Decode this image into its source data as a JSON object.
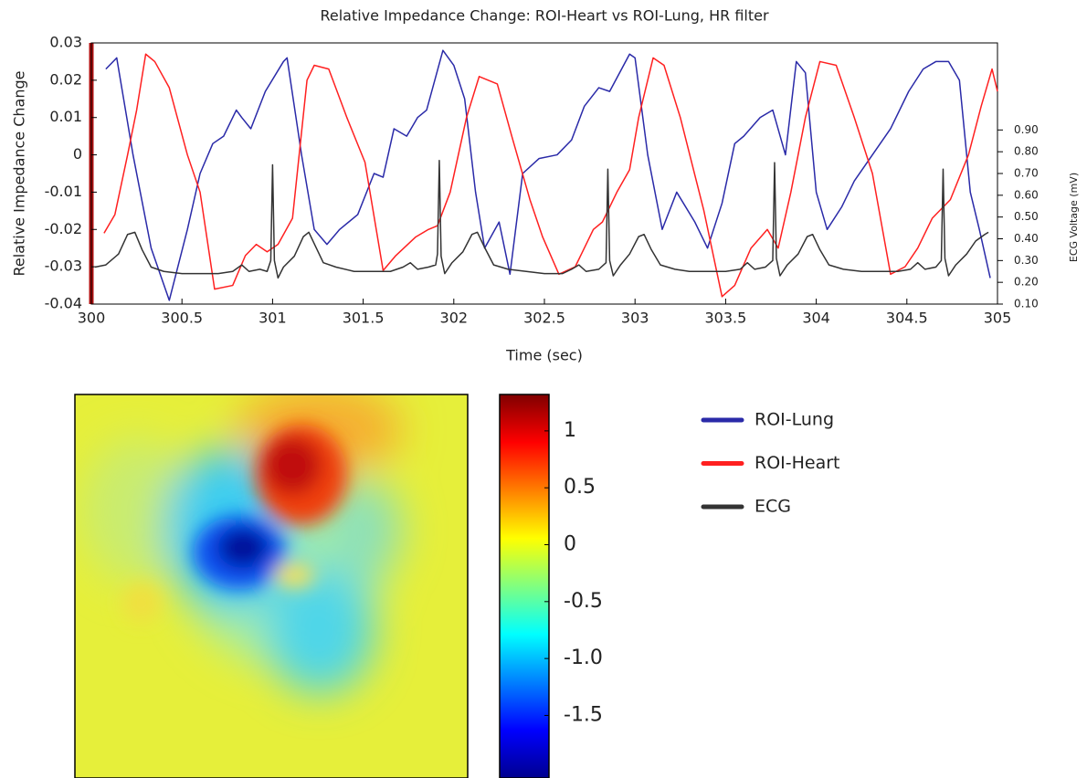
{
  "chart_data": [
    {
      "type": "line",
      "title": "Relative Impedance Change: ROI-Heart vs ROI-Lung, HR filter",
      "x_label": "Time (sec)",
      "y_label": "Relative Impedance Change",
      "y2_label": "ECG Voltage (mV)",
      "xlim": [
        300,
        305
      ],
      "xticks": [
        300,
        300.5,
        301,
        301.5,
        302,
        302.5,
        303,
        303.5,
        304,
        304.5,
        305
      ],
      "ylim": [
        -0.04,
        0.03
      ],
      "yticks": [
        -0.04,
        -0.03,
        -0.02,
        -0.01,
        0,
        0.01,
        0.02,
        0.03
      ],
      "y2lim": [
        0.1,
        1.3
      ],
      "y2ticks": [
        {
          "value": 0.1,
          "label": "0.10"
        },
        {
          "value": 0.2,
          "label": "0.20"
        },
        {
          "value": 0.3,
          "label": "0.30"
        },
        {
          "value": 0.4,
          "label": "0.40"
        },
        {
          "value": 0.5,
          "label": "0.50"
        },
        {
          "value": 0.6,
          "label": "0.60"
        },
        {
          "value": 0.7,
          "label": "0.70"
        },
        {
          "value": 0.8,
          "label": "0.80"
        },
        {
          "value": 0.9,
          "label": "0.90"
        }
      ],
      "series": [
        {
          "name": "ROI-Lung",
          "color": "#2a2aa8",
          "x": [
            300.08,
            300.14,
            300.23,
            300.33,
            300.43,
            300.53,
            300.6,
            300.67,
            300.73,
            300.8,
            300.83,
            300.88,
            300.96,
            301.06,
            301.08,
            301.16,
            301.23,
            301.3,
            301.37,
            301.47,
            301.56,
            301.61,
            301.67,
            301.74,
            301.8,
            301.85,
            301.94,
            302.0,
            302.06,
            302.12,
            302.17,
            302.25,
            302.31,
            302.38,
            302.47,
            302.57,
            302.65,
            302.72,
            302.8,
            302.86,
            302.97,
            303.0,
            303.07,
            303.15,
            303.23,
            303.33,
            303.4,
            303.48,
            303.55,
            303.6,
            303.69,
            303.76,
            303.83,
            303.89,
            303.94,
            304.0,
            304.06,
            304.14,
            304.21,
            304.31,
            304.41,
            304.51,
            304.59,
            304.66,
            304.73,
            304.79,
            304.85,
            304.9,
            304.96
          ],
          "values": [
            0.023,
            0.026,
            0.0,
            -0.025,
            -0.039,
            -0.02,
            -0.005,
            0.003,
            0.005,
            0.012,
            0.01,
            0.007,
            0.017,
            0.025,
            0.026,
            0.0,
            -0.02,
            -0.024,
            -0.02,
            -0.016,
            -0.005,
            -0.006,
            0.007,
            0.005,
            0.01,
            0.012,
            0.028,
            0.024,
            0.015,
            -0.01,
            -0.025,
            -0.018,
            -0.032,
            -0.005,
            -0.001,
            0.0,
            0.004,
            0.013,
            0.018,
            0.017,
            0.027,
            0.026,
            0.0,
            -0.02,
            -0.01,
            -0.018,
            -0.025,
            -0.013,
            0.003,
            0.005,
            0.01,
            0.012,
            0.0,
            0.025,
            0.022,
            -0.01,
            -0.02,
            -0.014,
            -0.007,
            0.0,
            0.007,
            0.017,
            0.023,
            0.025,
            0.025,
            0.02,
            -0.01,
            -0.02,
            -0.033
          ]
        },
        {
          "name": "ROI-Heart",
          "color": "#ff2020",
          "x": [
            300.07,
            300.13,
            300.2,
            300.25,
            300.3,
            300.35,
            300.43,
            300.53,
            300.6,
            300.68,
            300.78,
            300.85,
            300.91,
            300.97,
            301.03,
            301.11,
            301.19,
            301.23,
            301.31,
            301.41,
            301.51,
            301.61,
            301.68,
            301.79,
            301.86,
            301.91,
            301.98,
            302.07,
            302.14,
            302.24,
            302.32,
            302.42,
            302.49,
            302.58,
            302.67,
            302.77,
            302.82,
            302.9,
            302.97,
            303.02,
            303.1,
            303.16,
            303.25,
            303.38,
            303.48,
            303.55,
            303.64,
            303.73,
            303.79,
            303.86,
            303.94,
            304.02,
            304.11,
            304.21,
            304.31,
            304.41,
            304.49,
            304.56,
            304.64,
            304.74,
            304.84,
            304.91,
            304.97,
            305.0
          ],
          "values": [
            -0.021,
            -0.016,
            0.0,
            0.012,
            0.027,
            0.025,
            0.018,
            0.0,
            -0.01,
            -0.036,
            -0.035,
            -0.027,
            -0.024,
            -0.026,
            -0.024,
            -0.017,
            0.02,
            0.024,
            0.023,
            0.01,
            -0.002,
            -0.031,
            -0.027,
            -0.022,
            -0.02,
            -0.019,
            -0.01,
            0.01,
            0.021,
            0.019,
            0.005,
            -0.012,
            -0.022,
            -0.032,
            -0.03,
            -0.02,
            -0.018,
            -0.01,
            -0.004,
            0.01,
            0.026,
            0.024,
            0.01,
            -0.015,
            -0.038,
            -0.035,
            -0.025,
            -0.02,
            -0.025,
            -0.01,
            0.01,
            0.025,
            0.024,
            0.01,
            -0.005,
            -0.032,
            -0.03,
            -0.025,
            -0.017,
            -0.012,
            0.0,
            0.013,
            0.023,
            0.017
          ]
        },
        {
          "name": "ECG",
          "color": "#333333",
          "axis": "y2",
          "x": [
            300.02,
            300.08,
            300.15,
            300.2,
            300.24,
            300.28,
            300.33,
            300.4,
            300.5,
            300.6,
            300.7,
            300.78,
            300.83,
            300.87,
            300.93,
            300.97,
            300.99,
            301.0,
            301.01,
            301.03,
            301.06,
            301.12,
            301.17,
            301.2,
            301.24,
            301.28,
            301.35,
            301.45,
            301.55,
            301.65,
            301.72,
            301.76,
            301.8,
            301.86,
            301.9,
            301.91,
            301.92,
            301.93,
            301.95,
            301.99,
            302.05,
            302.1,
            302.13,
            302.17,
            302.22,
            302.3,
            302.4,
            302.5,
            302.6,
            302.65,
            302.69,
            302.73,
            302.8,
            302.84,
            302.85,
            302.86,
            302.88,
            302.92,
            302.97,
            303.02,
            303.05,
            303.09,
            303.14,
            303.22,
            303.3,
            303.4,
            303.5,
            303.58,
            303.62,
            303.66,
            303.72,
            303.76,
            303.77,
            303.78,
            303.8,
            303.84,
            303.9,
            303.95,
            303.98,
            304.02,
            304.07,
            304.15,
            304.25,
            304.35,
            304.45,
            304.52,
            304.56,
            304.6,
            304.66,
            304.69,
            304.7,
            304.71,
            304.73,
            304.77,
            304.83,
            304.88,
            304.93,
            304.95
          ],
          "values": [
            0.27,
            0.28,
            0.33,
            0.42,
            0.43,
            0.35,
            0.27,
            0.25,
            0.24,
            0.24,
            0.24,
            0.25,
            0.28,
            0.25,
            0.26,
            0.25,
            0.3,
            0.74,
            0.3,
            0.22,
            0.27,
            0.32,
            0.41,
            0.43,
            0.36,
            0.29,
            0.27,
            0.25,
            0.25,
            0.25,
            0.27,
            0.29,
            0.26,
            0.27,
            0.28,
            0.33,
            0.76,
            0.32,
            0.24,
            0.29,
            0.34,
            0.42,
            0.43,
            0.36,
            0.28,
            0.26,
            0.25,
            0.24,
            0.24,
            0.26,
            0.28,
            0.25,
            0.26,
            0.29,
            0.72,
            0.3,
            0.23,
            0.28,
            0.33,
            0.41,
            0.42,
            0.35,
            0.28,
            0.26,
            0.25,
            0.25,
            0.25,
            0.26,
            0.29,
            0.26,
            0.27,
            0.3,
            0.75,
            0.31,
            0.23,
            0.28,
            0.33,
            0.41,
            0.42,
            0.35,
            0.28,
            0.26,
            0.25,
            0.25,
            0.25,
            0.26,
            0.29,
            0.26,
            0.27,
            0.3,
            0.72,
            0.31,
            0.23,
            0.28,
            0.33,
            0.39,
            0.42,
            0.43
          ]
        }
      ]
    },
    {
      "type": "colorbar",
      "colormap": "jet",
      "clim": [
        -2.05,
        1.32
      ],
      "ticks": [
        {
          "value": -1.5,
          "label": "-1.5"
        },
        {
          "value": -1,
          "label": "-1.0"
        },
        {
          "value": -0.5,
          "label": "-0.5"
        },
        0,
        0.5,
        1
      ]
    }
  ]
}
